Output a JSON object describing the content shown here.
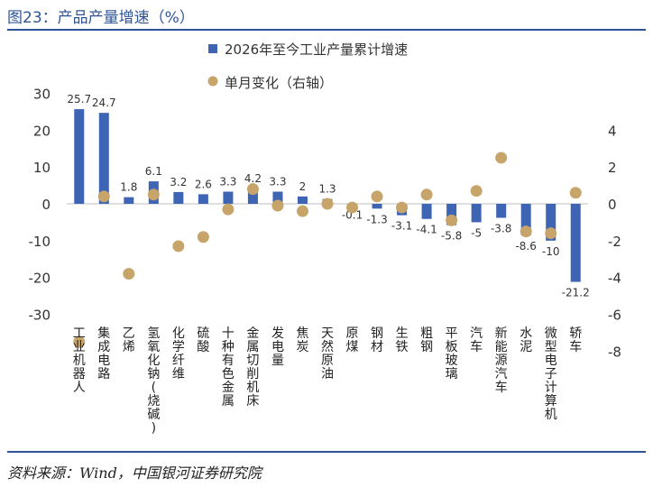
{
  "figure": {
    "title": "图23：产品产量增速（%）",
    "source": "资料来源：Wind，中国银河证券研究院"
  },
  "colors": {
    "bar": "#3e64b4",
    "dot": "#c6a46a",
    "title": "#2f5496",
    "axis": "#bfbfbf"
  },
  "chart_data": {
    "type": "bar",
    "categories": [
      "工业机器人",
      "集成电路",
      "乙烯",
      "氢氧化钠(烧碱)",
      "化学纤维",
      "硫酸",
      "十种有色金属",
      "金属切削机床",
      "发电量",
      "焦炭",
      "天然原油",
      "原煤",
      "钢材",
      "生铁",
      "粗钢",
      "平板玻璃",
      "汽车",
      "新能源汽车",
      "水泥",
      "微型电子计算机",
      "轿车"
    ],
    "series": [
      {
        "name": "2026年至今工业产量累计增速",
        "type": "bar",
        "axis": "left",
        "values": [
          25.7,
          24.7,
          1.8,
          6.1,
          3.2,
          2.6,
          3.3,
          4.2,
          3.3,
          2,
          1.3,
          -0.1,
          -1.3,
          -3.1,
          -4.1,
          -5.8,
          -5,
          -3.8,
          -8.6,
          -10,
          -21.2
        ],
        "labels": [
          "25.7",
          "24.7",
          "1.8",
          "6.1",
          "3.2",
          "2.6",
          "3.3",
          "4.2",
          "3.3",
          "2",
          "1.3",
          "-0.1",
          "-1.3",
          "-3.1",
          "-4.1",
          "-5.8",
          "-5",
          "-3.8",
          "-8.6",
          "-10",
          "-21.2"
        ]
      },
      {
        "name": "单月变化（右轴）",
        "type": "scatter",
        "axis": "right",
        "values": [
          -7.5,
          0.4,
          -3.8,
          0.5,
          -2.3,
          -1.8,
          -0.3,
          0.8,
          -0.1,
          -0.4,
          0,
          -0.2,
          0.4,
          -0.2,
          0.5,
          -0.9,
          0.7,
          2.5,
          -1.5,
          -1.6,
          0.6
        ]
      }
    ],
    "y_left": {
      "min": -30,
      "max": 30,
      "ticks": [
        "30",
        "20",
        "10",
        "0",
        "-10",
        "-20",
        "-30"
      ]
    },
    "y_right": {
      "min": -8,
      "max": 4,
      "ticks": [
        "4",
        "2",
        "0",
        "-2",
        "-4",
        "-6",
        "-8"
      ]
    },
    "legend_position": "top-center",
    "grid": false
  }
}
